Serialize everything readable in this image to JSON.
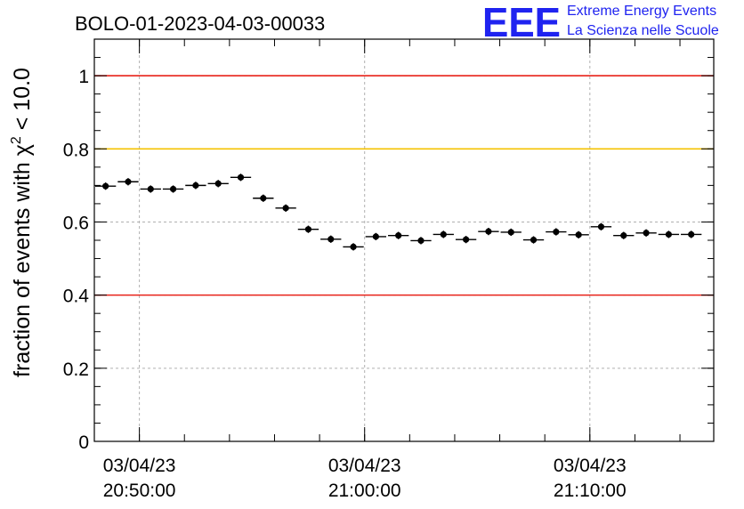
{
  "title": "BOLO-01-2023-04-03-00033",
  "logo": {
    "mark": "EEE",
    "line1": "Extreme Energy Events",
    "line2": "La Scienza nelle Scuole",
    "color": "#1f23f0"
  },
  "chart_data": {
    "type": "scatter",
    "title": "BOLO-01-2023-04-03-00033",
    "ylabel_prefix": "fraction of events with ",
    "ylabel_symbol": "χ",
    "ylabel_sup": "2",
    "ylabel_suffix": " < 10.0",
    "ylim": [
      0,
      1.1
    ],
    "xlim": [
      "03/04/23 20:48:00",
      "03/04/23 21:15:30"
    ],
    "y_ticks": [
      "0",
      "0.2",
      "0.4",
      "0.6",
      "0.8",
      "1"
    ],
    "x_ticks": [
      {
        "date": "03/04/23",
        "time": "20:50:00"
      },
      {
        "date": "03/04/23",
        "time": "21:00:00"
      },
      {
        "date": "03/04/23",
        "time": "21:10:00"
      }
    ],
    "grid": true,
    "reference_lines": [
      {
        "y": 1.0,
        "color": "#e8231a"
      },
      {
        "y": 0.8,
        "color": "#f5c200"
      },
      {
        "y": 0.4,
        "color": "#e8231a"
      }
    ],
    "series": [
      {
        "x": [
          "20:48:30",
          "20:49:30",
          "20:50:30",
          "20:51:30",
          "20:52:30",
          "20:53:30",
          "20:54:30",
          "20:55:30",
          "20:56:30",
          "20:57:30",
          "20:58:30",
          "20:59:30",
          "21:00:30",
          "21:01:30",
          "21:02:30",
          "21:03:30",
          "21:04:30",
          "21:05:30",
          "21:06:30",
          "21:07:30",
          "21:08:30",
          "21:09:30",
          "21:10:30",
          "21:11:30",
          "21:12:30",
          "21:13:30",
          "21:14:30"
        ],
        "values": [
          0.698,
          0.71,
          0.69,
          0.69,
          0.7,
          0.705,
          0.722,
          0.665,
          0.638,
          0.58,
          0.553,
          0.532,
          0.56,
          0.563,
          0.549,
          0.566,
          0.552,
          0.574,
          0.572,
          0.551,
          0.573,
          0.565,
          0.587,
          0.563,
          0.57,
          0.566,
          0.566
        ],
        "errors": [
          0.01,
          0.01,
          0.01,
          0.01,
          0.01,
          0.01,
          0.01,
          0.01,
          0.01,
          0.01,
          0.01,
          0.01,
          0.01,
          0.01,
          0.01,
          0.01,
          0.01,
          0.01,
          0.01,
          0.01,
          0.01,
          0.01,
          0.01,
          0.01,
          0.01,
          0.01,
          0.01
        ],
        "bin_width_seconds": 60,
        "color": "#000000"
      }
    ]
  }
}
